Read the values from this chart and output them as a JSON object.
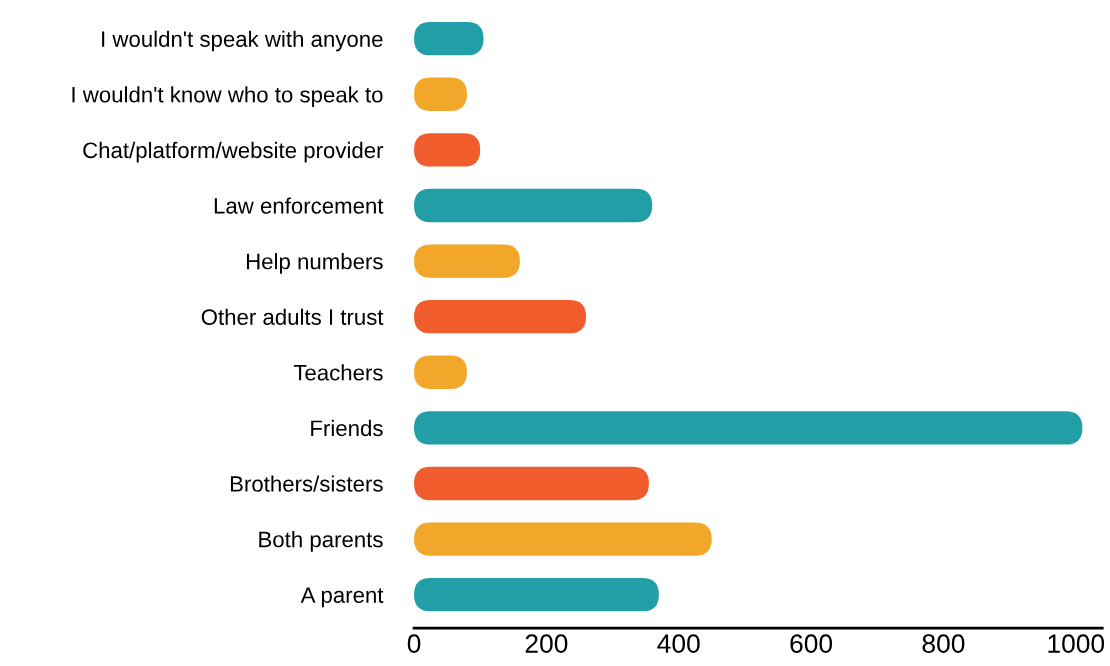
{
  "chart_data": {
    "type": "bar",
    "orientation": "horizontal",
    "categories": [
      "I wouldn't speak with anyone",
      "I wouldn't know who to speak to",
      "Chat/platform/website provider",
      "Law enforcement",
      "Help numbers",
      "Other adults I trust",
      "Teachers",
      "Friends",
      "Brothers/sisters",
      "Both parents",
      "A parent"
    ],
    "values": [
      105,
      80,
      100,
      360,
      160,
      260,
      80,
      1010,
      355,
      450,
      370
    ],
    "colors": [
      "#219ea6",
      "#f2a72b",
      "#f15c2c",
      "#219ea6",
      "#f2a72b",
      "#f15c2c",
      "#f2a72b",
      "#219ea6",
      "#f15c2c",
      "#f2a72b",
      "#219ea6"
    ],
    "xlim": [
      0,
      1040
    ],
    "xticks": [
      0,
      200,
      400,
      600,
      800,
      1000
    ],
    "grid": false,
    "legend": false
  }
}
